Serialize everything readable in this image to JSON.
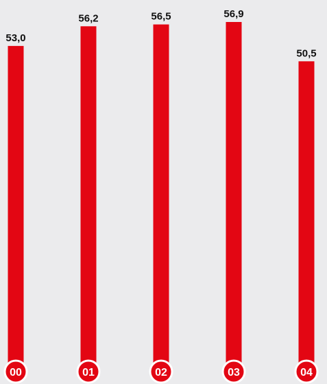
{
  "chart_data": {
    "type": "bar",
    "categories": [
      "00",
      "01",
      "02",
      "03",
      "04"
    ],
    "values": [
      53.0,
      56.2,
      56.5,
      56.9,
      50.5
    ],
    "value_labels": [
      "53,0",
      "56,2",
      "56,5",
      "56,9",
      "50,5"
    ],
    "ylim": [
      0,
      56.9
    ],
    "grid": false,
    "colors": {
      "bar": "#e30613",
      "badge": "#e30613",
      "badge_border": "#ffffff",
      "background": "#ebebed"
    }
  }
}
